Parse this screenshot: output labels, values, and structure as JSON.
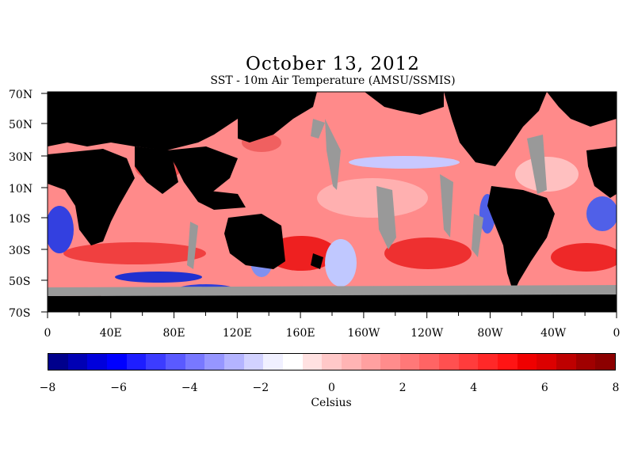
{
  "title": "October 13, 2012",
  "subtitle": "SST - 10m Air Temperature (AMSU/SSMIS)",
  "lat_labels": [
    "70N",
    "50N",
    "30N",
    "10N",
    "10S",
    "30S",
    "50S",
    "70S"
  ],
  "lon_labels": [
    "0",
    "40E",
    "80E",
    "120E",
    "160E",
    "160W",
    "120W",
    "80W",
    "40W",
    "0"
  ],
  "colorbar": {
    "min": -8,
    "max": 8,
    "tick_labels": [
      "-8",
      "-6",
      "-4",
      "-2",
      "0",
      "2",
      "4",
      "6",
      "8"
    ],
    "units": "Celsius",
    "colors": [
      "#00008c",
      "#0000b4",
      "#0000dc",
      "#0000ff",
      "#1e1eff",
      "#3c3cff",
      "#5a5aff",
      "#7878ff",
      "#9696ff",
      "#b4b4ff",
      "#d2d2ff",
      "#f0f0ff",
      "#ffffff",
      "#ffe1e1",
      "#ffc8c8",
      "#ffb4b4",
      "#ffa0a0",
      "#ff8c8c",
      "#ff7878",
      "#ff6464",
      "#ff5050",
      "#ff3c3c",
      "#ff2828",
      "#ff1414",
      "#f00000",
      "#dc0000",
      "#be0000",
      "#a00000",
      "#8c0000"
    ]
  },
  "colors": {
    "land": "#000000",
    "no_data": "#999999",
    "warm": "#e83030",
    "cool": "#3040e0"
  }
}
